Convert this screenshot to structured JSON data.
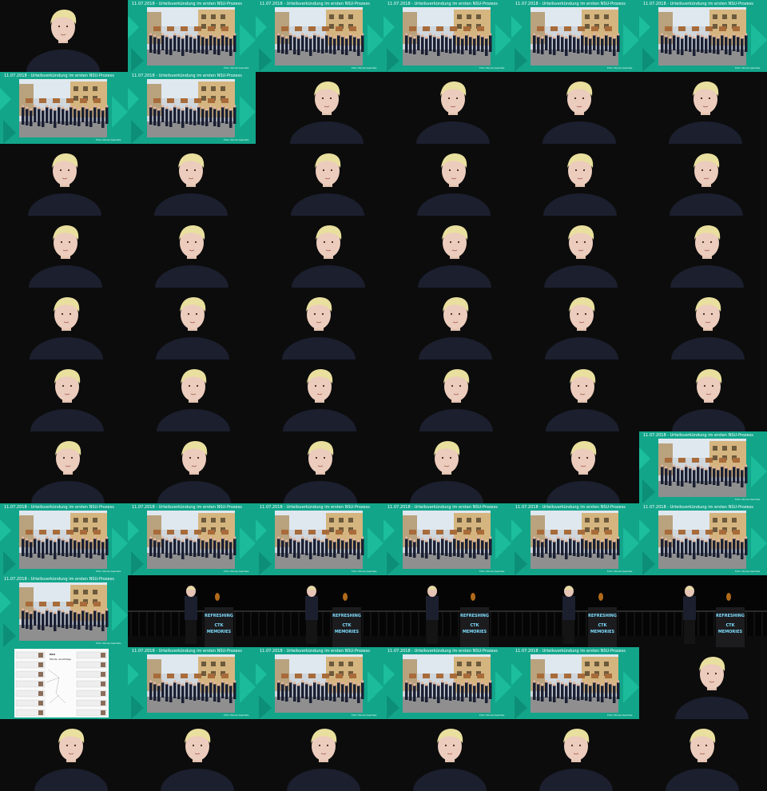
{
  "slide": {
    "title": "11.07.2018 - Urteilsverkündung im ersten NSU-Prozess",
    "credit": "Foto: Nicole Gaschke",
    "accent": "#12a58a"
  },
  "podium": {
    "line1": "REFRESHING",
    "line2": "MEMORIES"
  },
  "nsu_slide": {
    "title": "NSU",
    "subtitle": "Morde, Anschläge"
  },
  "tiles": [
    "speaker",
    "slide",
    "slide",
    "slide",
    "slide",
    "slide",
    "slide",
    "slide",
    "speaker",
    "speaker",
    "speaker",
    "speaker",
    "speaker",
    "speaker",
    "speaker",
    "speaker",
    "speaker",
    "speaker",
    "speaker",
    "speaker",
    "speaker",
    "speaker",
    "speaker",
    "speaker",
    "speaker",
    "speaker",
    "speaker",
    "speaker",
    "speaker",
    "speaker",
    "speaker",
    "speaker",
    "speaker",
    "speaker",
    "speaker",
    "speaker",
    "speaker",
    "speaker",
    "speaker",
    "speaker",
    "speaker",
    "slide",
    "slide",
    "slide",
    "slide",
    "slide",
    "slide",
    "slide",
    "slide",
    "stage",
    "stage",
    "stage",
    "stage",
    "stage",
    "nsu",
    "slide",
    "slide",
    "slide",
    "slide",
    "speaker",
    "speaker",
    "speaker",
    "speaker",
    "speaker",
    "speaker",
    "speaker"
  ]
}
